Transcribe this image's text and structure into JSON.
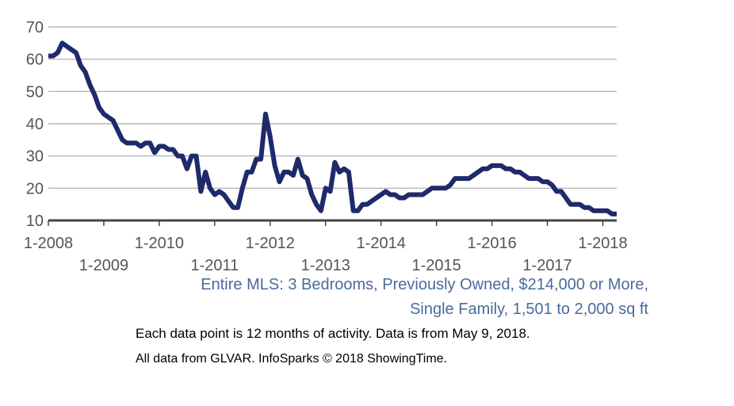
{
  "chart_data": {
    "type": "line",
    "ylim": [
      10,
      70
    ],
    "yticks": [
      10,
      20,
      30,
      40,
      50,
      60,
      70
    ],
    "xlim": [
      "2008-01",
      "2018-04"
    ],
    "xticks_upper": [
      "1-2008",
      "1-2010",
      "1-2012",
      "1-2014",
      "1-2016",
      "1-2018"
    ],
    "xticks_lower": [
      "1-2009",
      "1-2011",
      "1-2013",
      "1-2015",
      "1-2017"
    ],
    "grid": "horizontal",
    "line_color": "#1f2a6b",
    "series": [
      {
        "points": [
          [
            "2008-01",
            61
          ],
          [
            "2008-02",
            61
          ],
          [
            "2008-03",
            62
          ],
          [
            "2008-04",
            65
          ],
          [
            "2008-05",
            64
          ],
          [
            "2008-06",
            63
          ],
          [
            "2008-07",
            62
          ],
          [
            "2008-08",
            58
          ],
          [
            "2008-09",
            56
          ],
          [
            "2008-10",
            52
          ],
          [
            "2008-11",
            49
          ],
          [
            "2008-12",
            45
          ],
          [
            "2009-01",
            43
          ],
          [
            "2009-02",
            42
          ],
          [
            "2009-03",
            41
          ],
          [
            "2009-04",
            38
          ],
          [
            "2009-05",
            35
          ],
          [
            "2009-06",
            34
          ],
          [
            "2009-07",
            34
          ],
          [
            "2009-08",
            34
          ],
          [
            "2009-09",
            33
          ],
          [
            "2009-10",
            34
          ],
          [
            "2009-11",
            34
          ],
          [
            "2009-12",
            31
          ],
          [
            "2010-01",
            33
          ],
          [
            "2010-02",
            33
          ],
          [
            "2010-03",
            32
          ],
          [
            "2010-04",
            32
          ],
          [
            "2010-05",
            30
          ],
          [
            "2010-06",
            30
          ],
          [
            "2010-07",
            26
          ],
          [
            "2010-08",
            30
          ],
          [
            "2010-09",
            30
          ],
          [
            "2010-10",
            19
          ],
          [
            "2010-11",
            25
          ],
          [
            "2010-12",
            20
          ],
          [
            "2011-01",
            18
          ],
          [
            "2011-02",
            19
          ],
          [
            "2011-03",
            18
          ],
          [
            "2011-04",
            16
          ],
          [
            "2011-05",
            14
          ],
          [
            "2011-06",
            14
          ],
          [
            "2011-07",
            20
          ],
          [
            "2011-08",
            25
          ],
          [
            "2011-09",
            25
          ],
          [
            "2011-10",
            29
          ],
          [
            "2011-11",
            29
          ],
          [
            "2011-12",
            43
          ],
          [
            "2012-01",
            36
          ],
          [
            "2012-02",
            27
          ],
          [
            "2012-03",
            22
          ],
          [
            "2012-04",
            25
          ],
          [
            "2012-05",
            25
          ],
          [
            "2012-06",
            24
          ],
          [
            "2012-07",
            29
          ],
          [
            "2012-08",
            24
          ],
          [
            "2012-09",
            23
          ],
          [
            "2012-10",
            18
          ],
          [
            "2012-11",
            15
          ],
          [
            "2012-12",
            13
          ],
          [
            "2013-01",
            20
          ],
          [
            "2013-02",
            19
          ],
          [
            "2013-03",
            28
          ],
          [
            "2013-04",
            25
          ],
          [
            "2013-05",
            26
          ],
          [
            "2013-06",
            25
          ],
          [
            "2013-07",
            13
          ],
          [
            "2013-08",
            13
          ],
          [
            "2013-09",
            15
          ],
          [
            "2013-10",
            15
          ],
          [
            "2013-11",
            16
          ],
          [
            "2013-12",
            17
          ],
          [
            "2014-01",
            18
          ],
          [
            "2014-02",
            19
          ],
          [
            "2014-03",
            18
          ],
          [
            "2014-04",
            18
          ],
          [
            "2014-05",
            17
          ],
          [
            "2014-06",
            17
          ],
          [
            "2014-07",
            18
          ],
          [
            "2014-08",
            18
          ],
          [
            "2014-09",
            18
          ],
          [
            "2014-10",
            18
          ],
          [
            "2014-11",
            19
          ],
          [
            "2014-12",
            20
          ],
          [
            "2015-01",
            20
          ],
          [
            "2015-02",
            20
          ],
          [
            "2015-03",
            20
          ],
          [
            "2015-04",
            21
          ],
          [
            "2015-05",
            23
          ],
          [
            "2015-06",
            23
          ],
          [
            "2015-07",
            23
          ],
          [
            "2015-08",
            23
          ],
          [
            "2015-09",
            24
          ],
          [
            "2015-10",
            25
          ],
          [
            "2015-11",
            26
          ],
          [
            "2015-12",
            26
          ],
          [
            "2016-01",
            27
          ],
          [
            "2016-02",
            27
          ],
          [
            "2016-03",
            27
          ],
          [
            "2016-04",
            26
          ],
          [
            "2016-05",
            26
          ],
          [
            "2016-06",
            25
          ],
          [
            "2016-07",
            25
          ],
          [
            "2016-08",
            24
          ],
          [
            "2016-09",
            23
          ],
          [
            "2016-10",
            23
          ],
          [
            "2016-11",
            23
          ],
          [
            "2016-12",
            22
          ],
          [
            "2017-01",
            22
          ],
          [
            "2017-02",
            21
          ],
          [
            "2017-03",
            19
          ],
          [
            "2017-04",
            19
          ],
          [
            "2017-05",
            17
          ],
          [
            "2017-06",
            15
          ],
          [
            "2017-07",
            15
          ],
          [
            "2017-08",
            15
          ],
          [
            "2017-09",
            14
          ],
          [
            "2017-10",
            14
          ],
          [
            "2017-11",
            13
          ],
          [
            "2017-12",
            13
          ],
          [
            "2018-01",
            13
          ],
          [
            "2018-02",
            13
          ],
          [
            "2018-03",
            12
          ],
          [
            "2018-04",
            12
          ]
        ]
      }
    ]
  },
  "caption": {
    "line1": "Entire MLS: 3 Bedrooms, Previously Owned, $214,000 or More,",
    "line2": "Single Family, 1,501 to 2,000 sq ft"
  },
  "notes": {
    "line1": "Each data point is 12 months of activity. Data is from May 9, 2018.",
    "line2": "All data from GLVAR. InfoSparks © 2018 ShowingTime."
  }
}
